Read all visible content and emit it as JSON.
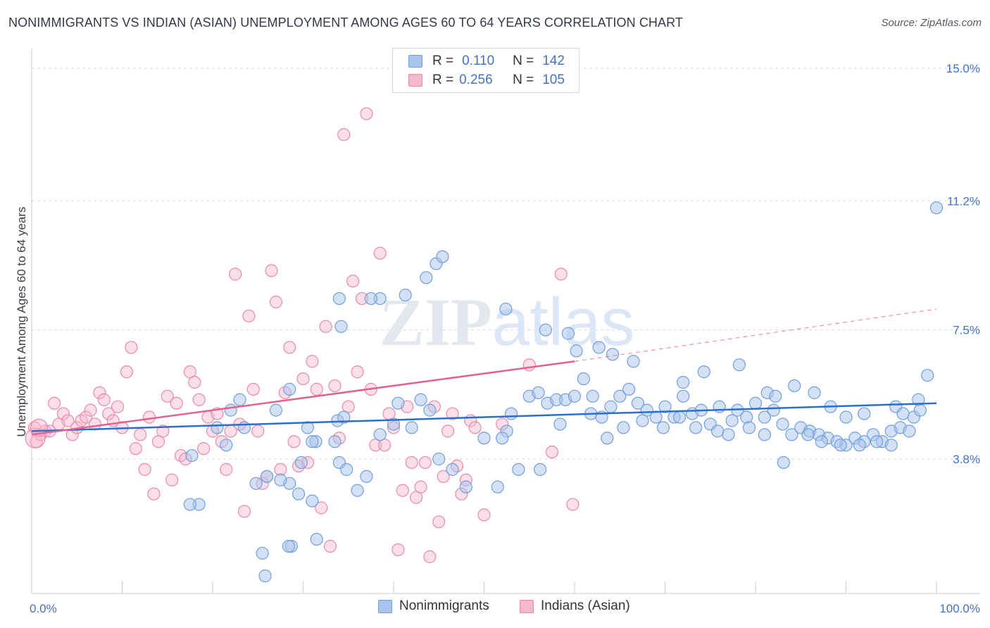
{
  "title": "NONIMMIGRANTS VS INDIAN (ASIAN) UNEMPLOYMENT AMONG AGES 60 TO 64 YEARS CORRELATION CHART",
  "source": "Source: ZipAtlas.com",
  "watermark": "ZIPatlas",
  "legend": {
    "rows": [
      {
        "r_label": "R =",
        "r_value": "0.110",
        "n_label": "N =",
        "n_value": "142"
      },
      {
        "r_label": "R =",
        "r_value": "0.256",
        "n_label": "N =",
        "n_value": "105"
      }
    ]
  },
  "bottom_legend": [
    "Nonimmigrants",
    "Indians (Asian)"
  ],
  "colors": {
    "blue_fill": "#a9c4ec",
    "blue_stroke": "#6f9fdc",
    "blue_line": "#2a6fd0",
    "pink_fill": "#f6b8cb",
    "pink_stroke": "#e88aa8",
    "pink_line": "#e2628e",
    "tick_text": "#4472c4",
    "grid": "#d8d8d8"
  },
  "chart_data": {
    "type": "scatter",
    "title": "NONIMMIGRANTS VS INDIAN (ASIAN) UNEMPLOYMENT AMONG AGES 60 TO 64 YEARS CORRELATION CHART",
    "xlabel": "",
    "ylabel": "Unemployment Among Ages 60 to 64 years",
    "xlim": [
      0,
      100
    ],
    "ylim": [
      0,
      16
    ],
    "x_tick_labels": [
      "0.0%",
      "100.0%"
    ],
    "y_ticks": [
      3.8,
      7.5,
      11.2,
      15.0
    ],
    "y_tick_labels": [
      "3.8%",
      "7.5%",
      "11.2%",
      "15.0%"
    ],
    "grid": "horizontal dashed",
    "legend_position": "top-center",
    "series": [
      {
        "name": "Nonimmigrants",
        "r": 0.11,
        "n": 142,
        "trend": {
          "x0": 0,
          "y0": 4.6,
          "x1": 100,
          "y1": 5.4
        },
        "points": [
          [
            28.5,
            3.1
          ],
          [
            29.5,
            2.8
          ],
          [
            31,
            2.6
          ],
          [
            31.5,
            1.5
          ],
          [
            28.7,
            1.3
          ],
          [
            25.5,
            1.1
          ],
          [
            28.4,
            1.3
          ],
          [
            25.8,
            0.45
          ],
          [
            24.8,
            3.1
          ],
          [
            26,
            3.3
          ],
          [
            27.5,
            3.2
          ],
          [
            31.4,
            4.3
          ],
          [
            33.5,
            4.3
          ],
          [
            33.8,
            4.9
          ],
          [
            34,
            3.7
          ],
          [
            30.5,
            4.7
          ],
          [
            29.8,
            3.7
          ],
          [
            23.5,
            4.7
          ],
          [
            22,
            5.2
          ],
          [
            21.5,
            4.2
          ],
          [
            18.5,
            2.5
          ],
          [
            17.5,
            2.5
          ],
          [
            17.7,
            3.9
          ],
          [
            20.5,
            4.7
          ],
          [
            23,
            5.5
          ],
          [
            27,
            5.2
          ],
          [
            31,
            4.3
          ],
          [
            28.5,
            5.8
          ],
          [
            34.5,
            5
          ],
          [
            36,
            2.9
          ],
          [
            34.8,
            3.5
          ],
          [
            37,
            3.3
          ],
          [
            38.5,
            4.5
          ],
          [
            40,
            4.8
          ],
          [
            40.5,
            5.4
          ],
          [
            42,
            4.7
          ],
          [
            43,
            5.5
          ],
          [
            44,
            5.2
          ],
          [
            45,
            3.8
          ],
          [
            46.5,
            3.5
          ],
          [
            48,
            3.0
          ],
          [
            50,
            4.4
          ],
          [
            51.5,
            3.0
          ],
          [
            52.5,
            4.6
          ],
          [
            53,
            5.1
          ],
          [
            55,
            5.6
          ],
          [
            56,
            5.7
          ],
          [
            57,
            5.4
          ],
          [
            58,
            5.5
          ],
          [
            59,
            5.5
          ],
          [
            60,
            5.6
          ],
          [
            61,
            6.1
          ],
          [
            62,
            5.6
          ],
          [
            63,
            5.0
          ],
          [
            64,
            5.3
          ],
          [
            65,
            5.6
          ],
          [
            66,
            5.8
          ],
          [
            67,
            5.4
          ],
          [
            68,
            5.2
          ],
          [
            69,
            5.0
          ],
          [
            70,
            5.3
          ],
          [
            71,
            5.0
          ],
          [
            72,
            5.6
          ],
          [
            73,
            5.1
          ],
          [
            74,
            5.2
          ],
          [
            75,
            4.8
          ],
          [
            76,
            5.3
          ],
          [
            77,
            4.5
          ],
          [
            78,
            5.2
          ],
          [
            79,
            5.0
          ],
          [
            80,
            5.4
          ],
          [
            81,
            5.0
          ],
          [
            82,
            5.2
          ],
          [
            83,
            4.8
          ],
          [
            84,
            4.5
          ],
          [
            85,
            4.7
          ],
          [
            86,
            4.6
          ],
          [
            87,
            4.5
          ],
          [
            88,
            4.4
          ],
          [
            89,
            4.3
          ],
          [
            90,
            4.2
          ],
          [
            91,
            4.4
          ],
          [
            92,
            4.3
          ],
          [
            93,
            4.5
          ],
          [
            94,
            4.3
          ],
          [
            95,
            4.6
          ],
          [
            96,
            4.7
          ],
          [
            97,
            4.6
          ],
          [
            98,
            5.5
          ],
          [
            99,
            6.2
          ],
          [
            100,
            11.0
          ],
          [
            44.7,
            9.4
          ],
          [
            43.6,
            9.0
          ],
          [
            38.5,
            8.4
          ],
          [
            37.5,
            8.4
          ],
          [
            34,
            8.4
          ],
          [
            34.2,
            7.6
          ],
          [
            41.3,
            8.5
          ],
          [
            45.4,
            9.6
          ],
          [
            52.4,
            8.1
          ],
          [
            56.8,
            7.5
          ],
          [
            59.3,
            7.4
          ],
          [
            60.2,
            6.9
          ],
          [
            62.7,
            7.0
          ],
          [
            64.2,
            6.8
          ],
          [
            66.5,
            6.6
          ],
          [
            72,
            6.0
          ],
          [
            74.3,
            6.3
          ],
          [
            78.2,
            6.5
          ],
          [
            81.3,
            5.7
          ],
          [
            82.2,
            5.6
          ],
          [
            84.3,
            5.9
          ],
          [
            86.5,
            5.7
          ],
          [
            88.3,
            5.3
          ],
          [
            90,
            5.0
          ],
          [
            92,
            5.1
          ],
          [
            95.5,
            5.3
          ],
          [
            96.3,
            5.1
          ],
          [
            97.5,
            5.0
          ],
          [
            98.2,
            5.2
          ],
          [
            52,
            4.4
          ],
          [
            53.8,
            3.5
          ],
          [
            56.2,
            3.5
          ],
          [
            58.4,
            4.8
          ],
          [
            61.8,
            5.1
          ],
          [
            63.6,
            4.4
          ],
          [
            65.4,
            4.7
          ],
          [
            67.5,
            4.9
          ],
          [
            69.8,
            4.7
          ],
          [
            71.6,
            5.0
          ],
          [
            73.4,
            4.7
          ],
          [
            75.8,
            4.6
          ],
          [
            77.4,
            4.9
          ],
          [
            79.3,
            4.7
          ],
          [
            81,
            4.5
          ],
          [
            83.1,
            3.7
          ],
          [
            85.8,
            4.5
          ],
          [
            87.3,
            4.3
          ],
          [
            89.4,
            4.2
          ],
          [
            91.5,
            4.2
          ],
          [
            93.4,
            4.3
          ],
          [
            95,
            4.2
          ]
        ]
      },
      {
        "name": "Indians (Asian)",
        "r": 0.256,
        "n": 105,
        "trend": {
          "x0": 0,
          "y0": 4.5,
          "x1": 60,
          "y1": 6.6
        },
        "trend_extension": {
          "x0": 60,
          "y0": 6.6,
          "x1": 100,
          "y1": 8.1
        },
        "points": [
          [
            0.3,
            4.7
          ],
          [
            0.5,
            4.3
          ],
          [
            1,
            4.5
          ],
          [
            1.5,
            4.6
          ],
          [
            2,
            4.6
          ],
          [
            2.5,
            5.4
          ],
          [
            3,
            4.8
          ],
          [
            3.5,
            5.1
          ],
          [
            4,
            4.9
          ],
          [
            4.5,
            4.5
          ],
          [
            5,
            4.7
          ],
          [
            5.5,
            4.9
          ],
          [
            6,
            5.0
          ],
          [
            6.5,
            5.2
          ],
          [
            7,
            4.8
          ],
          [
            7.5,
            5.7
          ],
          [
            8,
            5.5
          ],
          [
            8.5,
            5.1
          ],
          [
            9,
            4.9
          ],
          [
            9.5,
            5.3
          ],
          [
            10,
            4.7
          ],
          [
            10.5,
            6.3
          ],
          [
            11,
            7.0
          ],
          [
            11.5,
            4.1
          ],
          [
            12,
            4.5
          ],
          [
            12.5,
            3.5
          ],
          [
            13,
            5.0
          ],
          [
            13.5,
            2.8
          ],
          [
            14,
            4.3
          ],
          [
            14.5,
            4.6
          ],
          [
            15,
            5.6
          ],
          [
            15.5,
            3.2
          ],
          [
            16,
            5.4
          ],
          [
            16.5,
            3.9
          ],
          [
            17,
            3.8
          ],
          [
            17.5,
            6.3
          ],
          [
            18,
            6.0
          ],
          [
            18.5,
            5.5
          ],
          [
            19,
            4.1
          ],
          [
            19.5,
            5.0
          ],
          [
            20,
            4.6
          ],
          [
            20.5,
            5.1
          ],
          [
            21,
            4.3
          ],
          [
            21.5,
            3.5
          ],
          [
            22,
            4.6
          ],
          [
            22.5,
            9.1
          ],
          [
            23,
            4.8
          ],
          [
            23.5,
            2.3
          ],
          [
            24,
            7.9
          ],
          [
            24.5,
            5.8
          ],
          [
            25,
            4.6
          ],
          [
            25.5,
            3.1
          ],
          [
            26,
            3.3
          ],
          [
            26.5,
            9.2
          ],
          [
            27,
            8.3
          ],
          [
            27.5,
            3.5
          ],
          [
            28,
            5.7
          ],
          [
            28.5,
            7.0
          ],
          [
            29,
            4.3
          ],
          [
            29.5,
            3.6
          ],
          [
            30,
            6.1
          ],
          [
            30.5,
            3.7
          ],
          [
            31,
            6.6
          ],
          [
            31.5,
            5.8
          ],
          [
            32,
            2.4
          ],
          [
            32.5,
            7.6
          ],
          [
            33,
            1.3
          ],
          [
            33.5,
            5.9
          ],
          [
            34,
            4.4
          ],
          [
            34.5,
            13.1
          ],
          [
            35,
            5.3
          ],
          [
            35.5,
            8.9
          ],
          [
            36,
            6.3
          ],
          [
            36.5,
            8.4
          ],
          [
            37,
            13.7
          ],
          [
            37.5,
            5.8
          ],
          [
            38,
            4.2
          ],
          [
            38.5,
            9.7
          ],
          [
            39,
            4.2
          ],
          [
            39.5,
            5.1
          ],
          [
            40,
            4.7
          ],
          [
            40.5,
            1.2
          ],
          [
            41,
            2.9
          ],
          [
            41.5,
            5.3
          ],
          [
            42,
            3.7
          ],
          [
            42.5,
            2.7
          ],
          [
            43,
            3.0
          ],
          [
            43.5,
            3.7
          ],
          [
            44,
            1.0
          ],
          [
            44.5,
            5.3
          ],
          [
            45,
            2.0
          ],
          [
            45.5,
            3.3
          ],
          [
            46,
            4.6
          ],
          [
            46.5,
            5.1
          ],
          [
            47,
            3.6
          ],
          [
            47.5,
            2.8
          ],
          [
            48,
            3.2
          ],
          [
            48.5,
            4.9
          ],
          [
            49,
            4.7
          ],
          [
            50,
            2.2
          ],
          [
            52,
            4.8
          ],
          [
            55,
            6.5
          ],
          [
            57.5,
            4.0
          ],
          [
            58.5,
            9.1
          ],
          [
            59.8,
            2.5
          ]
        ]
      }
    ]
  }
}
